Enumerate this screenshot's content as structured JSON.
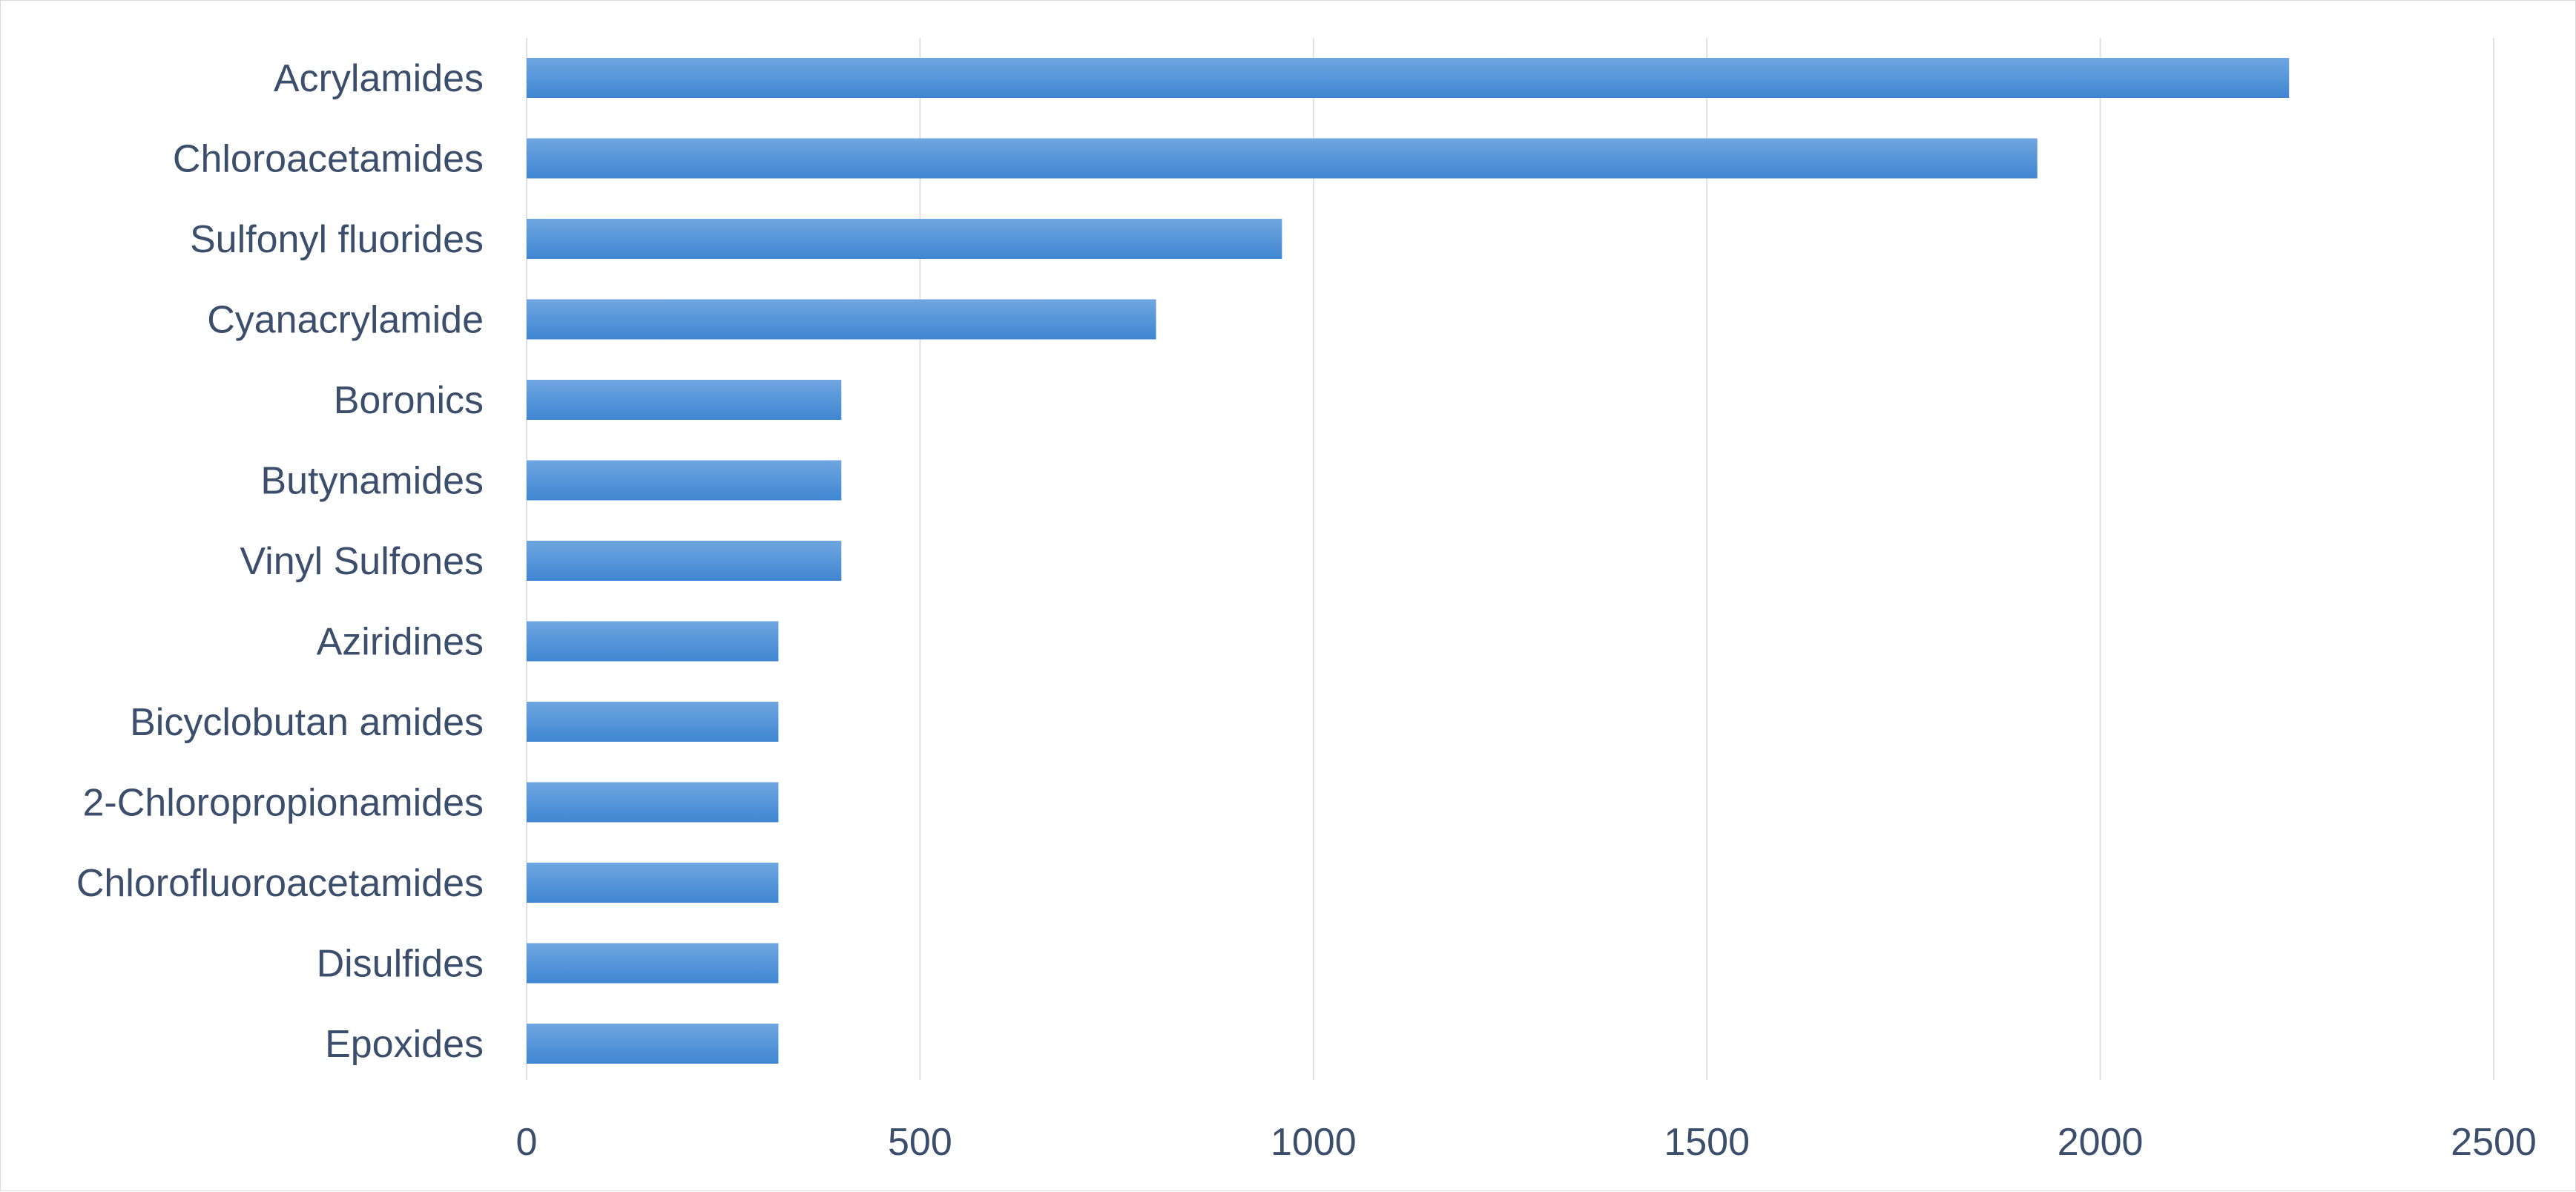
{
  "chart_data": {
    "type": "bar",
    "orientation": "horizontal",
    "categories": [
      "Acrylamides",
      "Chloroacetamides",
      "Sulfonyl fluorides",
      "Cyanacrylamide",
      "Boronics",
      "Butynamides",
      "Vinyl Sulfones",
      "Aziridines",
      "Bicyclobutan amides",
      "2-Chloropropionamides",
      "Chlorofluoroacetamides",
      "Disulfides",
      "Epoxides"
    ],
    "values": [
      2240,
      1920,
      960,
      800,
      400,
      400,
      400,
      320,
      320,
      320,
      320,
      320,
      320
    ],
    "xlim": [
      0,
      2500
    ],
    "xticks": [
      "0",
      "500",
      "1000",
      "1500",
      "2000",
      "2500"
    ],
    "title": "",
    "xlabel": "",
    "ylabel": "",
    "grid": "vertical",
    "legend": "none",
    "bar_color_top": "#6fa6e0",
    "bar_color_bottom": "#3f86d2"
  }
}
